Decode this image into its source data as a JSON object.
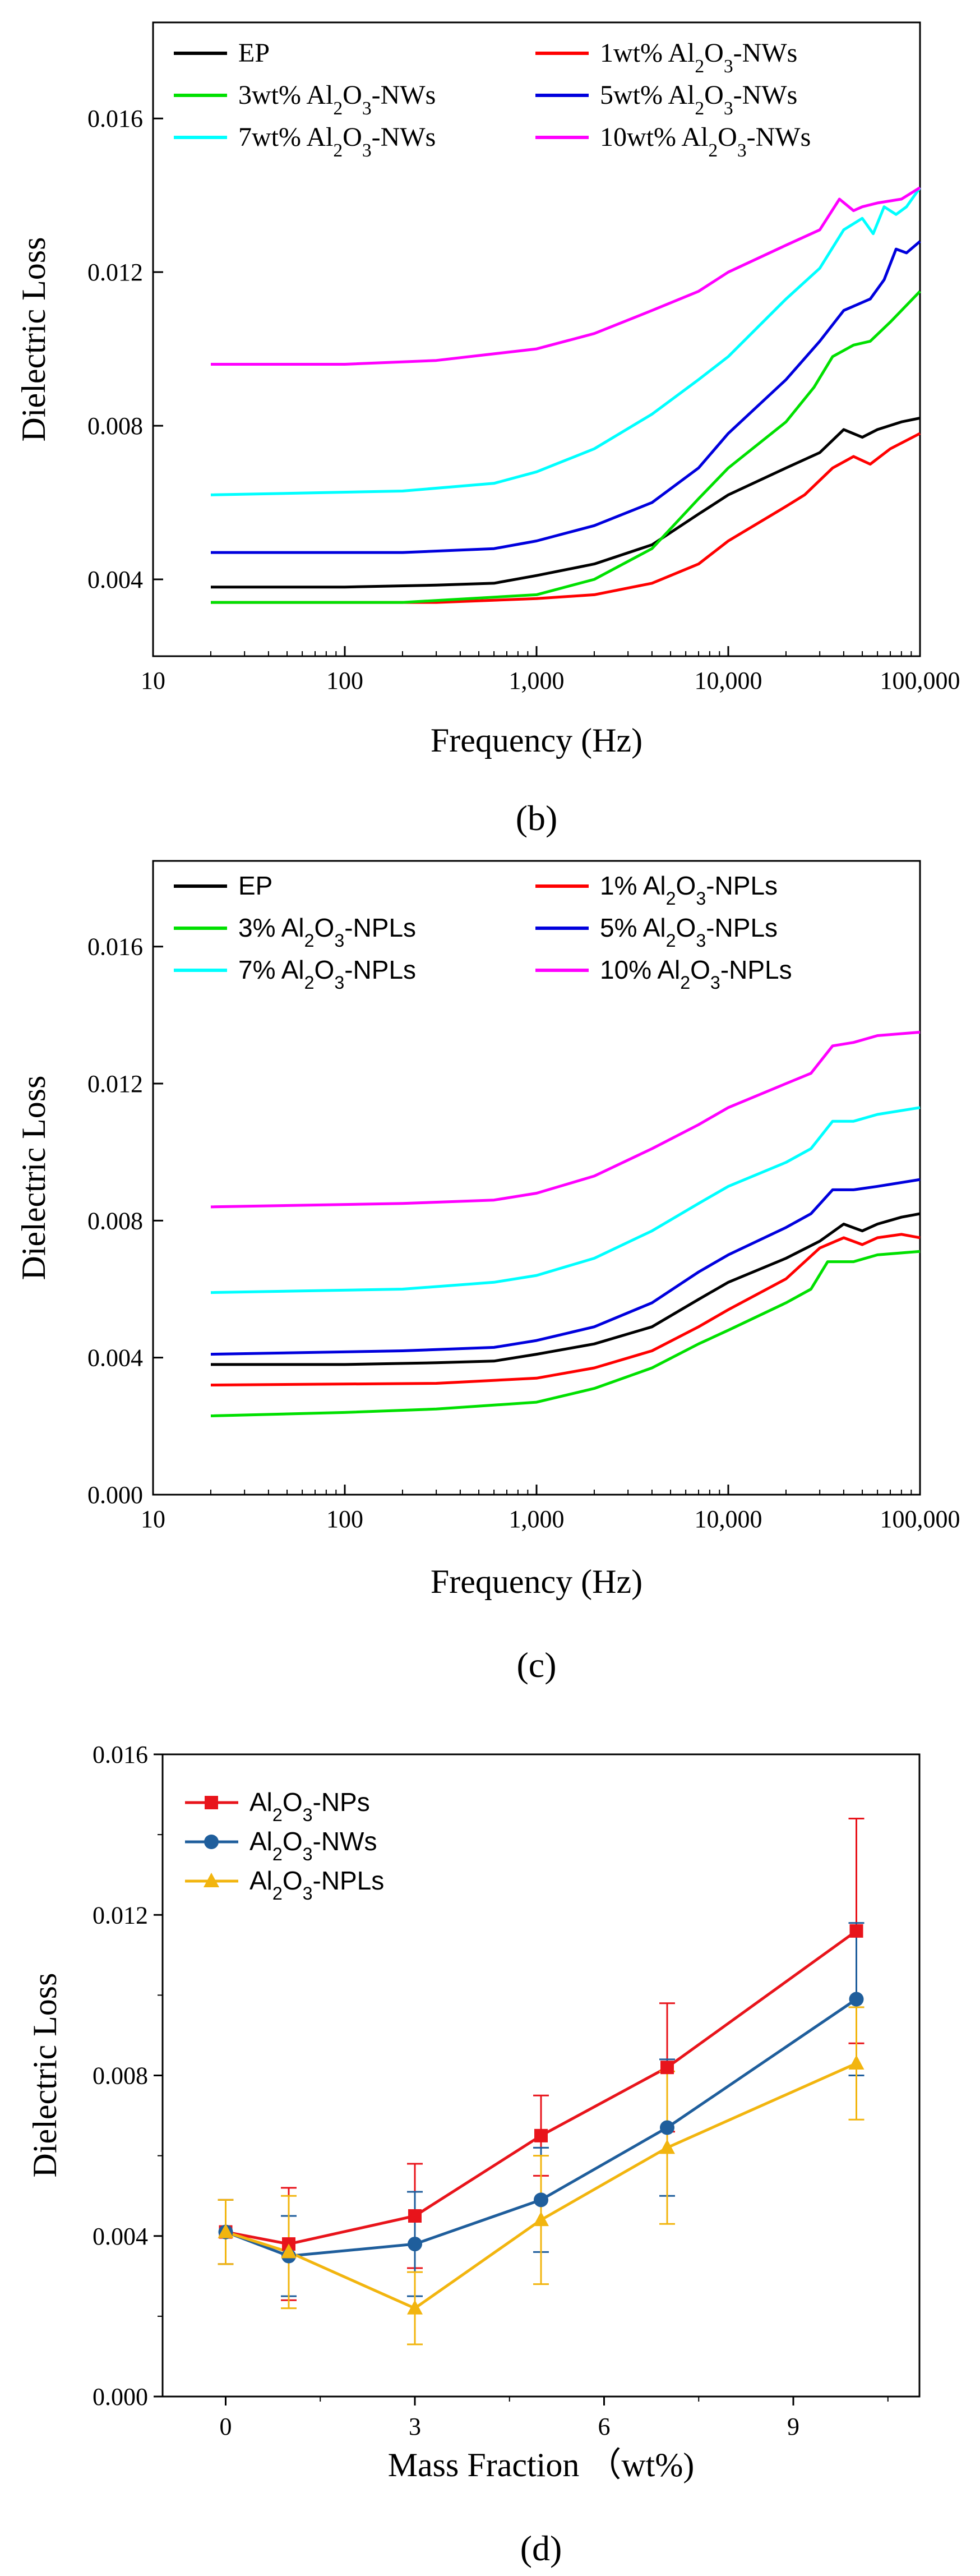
{
  "chart_data": [
    {
      "type": "line",
      "panel_label": "(b)",
      "xlabel": "Frequency (Hz)",
      "ylabel": "Dielectric Loss",
      "xscale": "log",
      "xlim": [
        10,
        100000
      ],
      "ylim": [
        0.002,
        0.0185
      ],
      "x_ticks": [
        10,
        100,
        1000,
        10000,
        100000
      ],
      "x_tick_labels": [
        "10",
        "100",
        "1,000",
        "10,000",
        "100,000"
      ],
      "y_ticks": [
        0.004,
        0.008,
        0.012,
        0.016
      ],
      "y_tick_labels": [
        "0.004",
        "0.008",
        "0.012",
        "0.016"
      ],
      "legend_placement": "top, two columns",
      "series": [
        {
          "name": "EP",
          "color": "#000000",
          "points": [
            [
              20,
              0.0038
            ],
            [
              100,
              0.0038
            ],
            [
              300,
              0.00385
            ],
            [
              600,
              0.0039
            ],
            [
              1000,
              0.0041
            ],
            [
              2000,
              0.0044
            ],
            [
              4000,
              0.0049
            ],
            [
              7000,
              0.0057
            ],
            [
              10000,
              0.0062
            ],
            [
              20000,
              0.0069
            ],
            [
              30000,
              0.0073
            ],
            [
              40000,
              0.0079
            ],
            [
              50000,
              0.0077
            ],
            [
              60000,
              0.0079
            ],
            [
              80000,
              0.0081
            ],
            [
              100000,
              0.0082
            ]
          ]
        },
        {
          "name": "1wt% Al2O3-NWs",
          "color": "#ff0000",
          "points": [
            [
              20,
              0.0034
            ],
            [
              300,
              0.0034
            ],
            [
              1000,
              0.0035
            ],
            [
              2000,
              0.0036
            ],
            [
              4000,
              0.0039
            ],
            [
              7000,
              0.0044
            ],
            [
              10000,
              0.005
            ],
            [
              20000,
              0.0059
            ],
            [
              25000,
              0.0062
            ],
            [
              35000,
              0.0069
            ],
            [
              45000,
              0.0072
            ],
            [
              55000,
              0.007
            ],
            [
              70000,
              0.0074
            ],
            [
              100000,
              0.0078
            ]
          ]
        },
        {
          "name": "3wt% Al2O3-NWs",
          "color": "#00e000",
          "points": [
            [
              20,
              0.0034
            ],
            [
              200,
              0.0034
            ],
            [
              1000,
              0.0036
            ],
            [
              2000,
              0.004
            ],
            [
              4000,
              0.0048
            ],
            [
              7000,
              0.0061
            ],
            [
              10000,
              0.0069
            ],
            [
              20000,
              0.0081
            ],
            [
              28000,
              0.009
            ],
            [
              35000,
              0.0098
            ],
            [
              45000,
              0.0101
            ],
            [
              55000,
              0.0102
            ],
            [
              70000,
              0.0107
            ],
            [
              100000,
              0.0115
            ]
          ]
        },
        {
          "name": "5wt% Al2O3-NWs",
          "color": "#0000dd",
          "points": [
            [
              20,
              0.0047
            ],
            [
              200,
              0.0047
            ],
            [
              600,
              0.0048
            ],
            [
              1000,
              0.005
            ],
            [
              2000,
              0.0054
            ],
            [
              4000,
              0.006
            ],
            [
              7000,
              0.0069
            ],
            [
              10000,
              0.0078
            ],
            [
              20000,
              0.0092
            ],
            [
              30000,
              0.0102
            ],
            [
              40000,
              0.011
            ],
            [
              55000,
              0.0113
            ],
            [
              65000,
              0.0118
            ],
            [
              75000,
              0.0126
            ],
            [
              85000,
              0.0125
            ],
            [
              100000,
              0.0128
            ]
          ]
        },
        {
          "name": "7wt% Al2O3-NWs",
          "color": "#00ffff",
          "points": [
            [
              20,
              0.0062
            ],
            [
              200,
              0.0063
            ],
            [
              600,
              0.0065
            ],
            [
              1000,
              0.0068
            ],
            [
              2000,
              0.0074
            ],
            [
              4000,
              0.0083
            ],
            [
              7000,
              0.0092
            ],
            [
              10000,
              0.0098
            ],
            [
              20000,
              0.0113
            ],
            [
              30000,
              0.0121
            ],
            [
              40000,
              0.0131
            ],
            [
              50000,
              0.0134
            ],
            [
              57000,
              0.013
            ],
            [
              65000,
              0.0137
            ],
            [
              75000,
              0.0135
            ],
            [
              85000,
              0.0137
            ],
            [
              100000,
              0.0142
            ]
          ]
        },
        {
          "name": "10wt% Al2O3-NWs",
          "color": "#ff00ff",
          "points": [
            [
              20,
              0.0096
            ],
            [
              100,
              0.0096
            ],
            [
              300,
              0.0097
            ],
            [
              1000,
              0.01
            ],
            [
              2000,
              0.0104
            ],
            [
              4000,
              0.011
            ],
            [
              7000,
              0.0115
            ],
            [
              10000,
              0.012
            ],
            [
              20000,
              0.0127
            ],
            [
              30000,
              0.0131
            ],
            [
              38000,
              0.0139
            ],
            [
              45000,
              0.0136
            ],
            [
              50000,
              0.0137
            ],
            [
              60000,
              0.0138
            ],
            [
              80000,
              0.0139
            ],
            [
              100000,
              0.0142
            ]
          ]
        }
      ]
    },
    {
      "type": "line",
      "panel_label": "(c)",
      "xlabel": "Frequency (Hz)",
      "ylabel": "Dielectric Loss",
      "xscale": "log",
      "xlim": [
        10,
        100000
      ],
      "ylim": [
        0.0,
        0.0185
      ],
      "x_ticks": [
        10,
        100,
        1000,
        10000,
        100000
      ],
      "x_tick_labels": [
        "10",
        "100",
        "1,000",
        "10,000",
        "100,000"
      ],
      "y_ticks": [
        0.0,
        0.004,
        0.008,
        0.012,
        0.016
      ],
      "y_tick_labels": [
        "0.000",
        "0.004",
        "0.008",
        "0.012",
        "0.016"
      ],
      "legend_placement": "top, two columns",
      "series": [
        {
          "name": "EP",
          "color": "#000000",
          "points": [
            [
              20,
              0.0038
            ],
            [
              100,
              0.0038
            ],
            [
              300,
              0.00385
            ],
            [
              600,
              0.0039
            ],
            [
              1000,
              0.0041
            ],
            [
              2000,
              0.0044
            ],
            [
              4000,
              0.0049
            ],
            [
              7000,
              0.0057
            ],
            [
              10000,
              0.0062
            ],
            [
              20000,
              0.0069
            ],
            [
              30000,
              0.0074
            ],
            [
              40000,
              0.0079
            ],
            [
              50000,
              0.0077
            ],
            [
              60000,
              0.0079
            ],
            [
              80000,
              0.0081
            ],
            [
              100000,
              0.0082
            ]
          ]
        },
        {
          "name": "1% Al2O3-NPLs",
          "color": "#ff0000",
          "points": [
            [
              20,
              0.0032
            ],
            [
              300,
              0.00325
            ],
            [
              1000,
              0.0034
            ],
            [
              2000,
              0.0037
            ],
            [
              4000,
              0.0042
            ],
            [
              7000,
              0.0049
            ],
            [
              10000,
              0.0054
            ],
            [
              20000,
              0.0063
            ],
            [
              30000,
              0.0072
            ],
            [
              40000,
              0.0075
            ],
            [
              50000,
              0.0073
            ],
            [
              60000,
              0.0075
            ],
            [
              80000,
              0.0076
            ],
            [
              100000,
              0.0075
            ]
          ]
        },
        {
          "name": "3% Al2O3-NPLs",
          "color": "#00e000",
          "points": [
            [
              20,
              0.0023
            ],
            [
              100,
              0.0024
            ],
            [
              300,
              0.0025
            ],
            [
              1000,
              0.0027
            ],
            [
              2000,
              0.0031
            ],
            [
              4000,
              0.0037
            ],
            [
              7000,
              0.0044
            ],
            [
              10000,
              0.0048
            ],
            [
              20000,
              0.0056
            ],
            [
              27000,
              0.006
            ],
            [
              33000,
              0.0068
            ],
            [
              45000,
              0.0068
            ],
            [
              60000,
              0.007
            ],
            [
              100000,
              0.0071
            ]
          ]
        },
        {
          "name": "5% Al2O3-NPLs",
          "color": "#0000dd",
          "points": [
            [
              20,
              0.0041
            ],
            [
              200,
              0.0042
            ],
            [
              600,
              0.0043
            ],
            [
              1000,
              0.0045
            ],
            [
              2000,
              0.0049
            ],
            [
              4000,
              0.0056
            ],
            [
              7000,
              0.0065
            ],
            [
              10000,
              0.007
            ],
            [
              20000,
              0.0078
            ],
            [
              27000,
              0.0082
            ],
            [
              35000,
              0.0089
            ],
            [
              45000,
              0.0089
            ],
            [
              60000,
              0.009
            ],
            [
              100000,
              0.0092
            ]
          ]
        },
        {
          "name": "7% Al2O3-NPLs",
          "color": "#00ffff",
          "points": [
            [
              20,
              0.0059
            ],
            [
              200,
              0.006
            ],
            [
              600,
              0.0062
            ],
            [
              1000,
              0.0064
            ],
            [
              2000,
              0.0069
            ],
            [
              4000,
              0.0077
            ],
            [
              7000,
              0.0085
            ],
            [
              10000,
              0.009
            ],
            [
              20000,
              0.0097
            ],
            [
              27000,
              0.0101
            ],
            [
              35000,
              0.0109
            ],
            [
              45000,
              0.0109
            ],
            [
              60000,
              0.0111
            ],
            [
              100000,
              0.0113
            ]
          ]
        },
        {
          "name": "10% Al2O3-NPLs",
          "color": "#ff00ff",
          "points": [
            [
              20,
              0.0084
            ],
            [
              200,
              0.0085
            ],
            [
              600,
              0.0086
            ],
            [
              1000,
              0.0088
            ],
            [
              2000,
              0.0093
            ],
            [
              4000,
              0.0101
            ],
            [
              7000,
              0.0108
            ],
            [
              10000,
              0.0113
            ],
            [
              20000,
              0.012
            ],
            [
              27000,
              0.0123
            ],
            [
              35000,
              0.0131
            ],
            [
              45000,
              0.0132
            ],
            [
              60000,
              0.0134
            ],
            [
              100000,
              0.0135
            ]
          ]
        }
      ]
    },
    {
      "type": "line",
      "panel_label": "(d)",
      "xlabel": "Mass Fraction （wt%)",
      "ylabel": "Dielectric Loss",
      "xlim": [
        -1,
        11
      ],
      "ylim": [
        0.0,
        0.016
      ],
      "x_ticks": [
        0,
        3,
        6,
        9
      ],
      "x_tick_labels": [
        "0",
        "3",
        "6",
        "9"
      ],
      "y_ticks": [
        0.0,
        0.004,
        0.008,
        0.012,
        0.016
      ],
      "y_tick_labels": [
        "0.000",
        "0.004",
        "0.008",
        "0.012",
        "0.016"
      ],
      "legend_placement": "top-left",
      "error_bars": true,
      "series": [
        {
          "name": "Al2O3-NPs",
          "color": "#e8141b",
          "marker": "square",
          "x": [
            0,
            1,
            3,
            5,
            7,
            10
          ],
          "values": [
            0.0041,
            0.0038,
            0.0045,
            0.0065,
            0.0082,
            0.0116
          ],
          "errors": [
            0.0008,
            0.0014,
            0.0013,
            0.001,
            0.0016,
            0.0028
          ]
        },
        {
          "name": "Al2O3-NWs",
          "color": "#1f5e9c",
          "marker": "circle",
          "x": [
            0,
            1,
            3,
            5,
            7,
            10
          ],
          "values": [
            0.0041,
            0.0035,
            0.0038,
            0.0049,
            0.0067,
            0.0099
          ],
          "errors": [
            0.0008,
            0.001,
            0.0013,
            0.0013,
            0.0017,
            0.0019
          ]
        },
        {
          "name": "Al2O3-NPLs",
          "color": "#f2b50f",
          "marker": "triangle",
          "x": [
            0,
            1,
            3,
            5,
            7,
            10
          ],
          "values": [
            0.0041,
            0.0036,
            0.0022,
            0.0044,
            0.0062,
            0.0083
          ],
          "errors": [
            0.0008,
            0.0014,
            0.0009,
            0.0016,
            0.0019,
            0.0014
          ]
        }
      ]
    }
  ]
}
